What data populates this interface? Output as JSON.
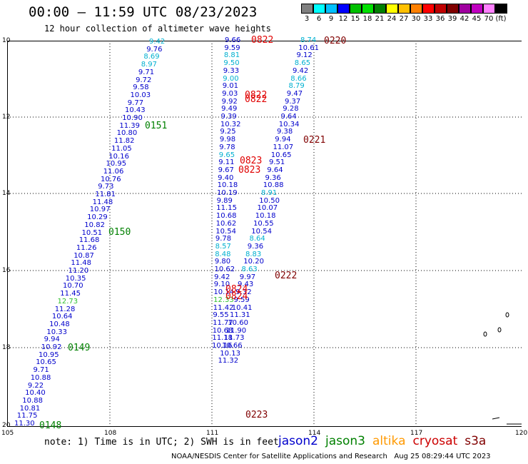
{
  "header": {
    "title": "00:00 – 11:59 UTC 08/23/2023",
    "subtitle": "12 hour collection of altimeter wave heights"
  },
  "colorbar": {
    "colors": [
      "#808080",
      "#00ffff",
      "#00c0ff",
      "#0000ff",
      "#00c000",
      "#00e000",
      "#008000",
      "#ffff00",
      "#ffc000",
      "#ff8000",
      "#ff0000",
      "#c00000",
      "#800000",
      "#a000a0",
      "#c000c0",
      "#ff80ff",
      "#000000"
    ],
    "labels": [
      "3",
      "6",
      "9",
      "12",
      "15",
      "18",
      "21",
      "24",
      "27",
      "30",
      "33",
      "36",
      "39",
      "42",
      "45",
      "70",
      "(ft)"
    ]
  },
  "axes": {
    "lon_labels": [
      "105",
      "108",
      "111",
      "114",
      "117",
      "120"
    ],
    "lat_labels": [
      "10",
      "12",
      "14",
      "16",
      "18",
      "20"
    ]
  },
  "colors": {
    "jason2": "#0000cc",
    "cyan": "#00b0d0",
    "lgreen": "#30c030",
    "dgreen": "#008000",
    "red": "#e00000",
    "dred": "#800000"
  },
  "tracks": {
    "track1": {
      "items": [
        [
          "9.42",
          "cyan"
        ],
        [
          "9.76",
          "jason2"
        ],
        [
          "8.69",
          "cyan"
        ],
        [
          "8.97",
          "cyan"
        ],
        [
          "9.71",
          "jason2"
        ],
        [
          "9.72",
          "jason2"
        ],
        [
          "9.58",
          "jason2"
        ],
        [
          "10.03",
          "jason2"
        ],
        [
          "9.77",
          "jason2"
        ],
        [
          "10.43",
          "jason2"
        ],
        [
          "10.90",
          "jason2"
        ],
        [
          "11.39",
          "jason2"
        ],
        [
          "10.80",
          "jason2"
        ],
        [
          "11.82",
          "jason2"
        ],
        [
          "11.05",
          "jason2"
        ],
        [
          "10.16",
          "jason2"
        ],
        [
          "10.95",
          "jason2"
        ],
        [
          "11.06",
          "jason2"
        ],
        [
          "10.76",
          "jason2"
        ],
        [
          "9.73",
          "jason2"
        ],
        [
          "11.81",
          "jason2"
        ],
        [
          "11.48",
          "jason2"
        ],
        [
          "10.97",
          "jason2"
        ],
        [
          "10.29",
          "jason2"
        ],
        [
          "10.82",
          "jason2"
        ],
        [
          "10.51",
          "jason2"
        ],
        [
          "11.68",
          "jason2"
        ],
        [
          "11.26",
          "jason2"
        ],
        [
          "10.87",
          "jason2"
        ],
        [
          "11.48",
          "jason2"
        ],
        [
          "11.20",
          "jason2"
        ],
        [
          "10.35",
          "jason2"
        ],
        [
          "10.70",
          "jason2"
        ],
        [
          "11.45",
          "jason2"
        ],
        [
          "12.73",
          "lgreen"
        ],
        [
          "11.28",
          "jason2"
        ],
        [
          "10.64",
          "jason2"
        ],
        [
          "10.48",
          "jason2"
        ],
        [
          "10.33",
          "jason2"
        ],
        [
          "9.94",
          "jason2"
        ],
        [
          "10.92",
          "jason2"
        ],
        [
          "10.95",
          "jason2"
        ],
        [
          "10.65",
          "jason2"
        ],
        [
          "9.71",
          "jason2"
        ],
        [
          "10.88",
          "jason2"
        ],
        [
          "9.22",
          "jason2"
        ],
        [
          "10.40",
          "jason2"
        ],
        [
          "10.88",
          "jason2"
        ],
        [
          "10.81",
          "jason2"
        ],
        [
          "11.75",
          "jason2"
        ],
        [
          "11.30",
          "jason2"
        ]
      ]
    },
    "track2": {
      "items": [
        [
          "9.66",
          "jason2"
        ],
        [
          "9.59",
          "jason2"
        ],
        [
          "8.81",
          "cyan"
        ],
        [
          "9.50",
          "cyan"
        ],
        [
          "9.33",
          "jason2"
        ],
        [
          "9.00",
          "cyan"
        ],
        [
          "9.01",
          "jason2"
        ],
        [
          "9.03",
          "jason2"
        ],
        [
          "9.92",
          "jason2"
        ],
        [
          "9.49",
          "jason2"
        ],
        [
          "9.39",
          "jason2"
        ],
        [
          "10.32",
          "jason2"
        ],
        [
          "9.25",
          "jason2"
        ],
        [
          "9.98",
          "jason2"
        ],
        [
          "9.78",
          "jason2"
        ],
        [
          "9.65",
          "cyan"
        ],
        [
          "9.11",
          "jason2"
        ],
        [
          "9.67",
          "jason2"
        ],
        [
          "9.40",
          "jason2"
        ],
        [
          "10.18",
          "jason2"
        ],
        [
          "10.19",
          "jason2"
        ],
        [
          "9.89",
          "jason2"
        ],
        [
          "11.15",
          "jason2"
        ],
        [
          "10.68",
          "jason2"
        ],
        [
          "10.62",
          "jason2"
        ],
        [
          "10.54",
          "jason2"
        ],
        [
          "9.78",
          "jason2"
        ],
        [
          "8.57",
          "cyan"
        ],
        [
          "8.48",
          "cyan"
        ],
        [
          "9.80",
          "jason2"
        ],
        [
          "10.62",
          "jason2"
        ],
        [
          "9.42",
          "jason2"
        ],
        [
          "9.10",
          "jason2"
        ],
        [
          "10.14",
          "jason2"
        ],
        [
          "12.33",
          "lgreen"
        ],
        [
          "11.42",
          "jason2"
        ],
        [
          "9.55",
          "jason2"
        ],
        [
          "11.77",
          "jason2"
        ],
        [
          "10.68",
          "jason2"
        ],
        [
          "11.18",
          "jason2"
        ],
        [
          "10.16",
          "jason2"
        ]
      ]
    },
    "track3": {
      "items": [
        [
          "8.74",
          "cyan"
        ],
        [
          "10.61",
          "jason2"
        ],
        [
          "9.12",
          "jason2"
        ],
        [
          "8.65",
          "cyan"
        ],
        [
          "9.42",
          "jason2"
        ],
        [
          "8.66",
          "cyan"
        ],
        [
          "8.79",
          "cyan"
        ],
        [
          "9.47",
          "jason2"
        ],
        [
          "9.37",
          "jason2"
        ],
        [
          "9.28",
          "jason2"
        ],
        [
          "9.64",
          "jason2"
        ],
        [
          "10.34",
          "jason2"
        ],
        [
          "9.38",
          "jason2"
        ],
        [
          "9.94",
          "jason2"
        ],
        [
          "11.07",
          "jason2"
        ],
        [
          "10.65",
          "jason2"
        ],
        [
          "9.51",
          "jason2"
        ],
        [
          "9.64",
          "jason2"
        ],
        [
          "9.36",
          "jason2"
        ],
        [
          "10.88",
          "jason2"
        ],
        [
          "8.91",
          "cyan"
        ],
        [
          "10.50",
          "jason2"
        ],
        [
          "10.07",
          "jason2"
        ],
        [
          "10.18",
          "jason2"
        ],
        [
          "10.55",
          "jason2"
        ],
        [
          "10.54",
          "jason2"
        ],
        [
          "8.64",
          "cyan"
        ],
        [
          "9.36",
          "jason2"
        ],
        [
          "8.83",
          "cyan"
        ],
        [
          "10.20",
          "jason2"
        ],
        [
          "8.63",
          "cyan"
        ],
        [
          "9.97",
          "jason2"
        ],
        [
          "9.43",
          "jason2"
        ],
        [
          "9.32",
          "jason2"
        ],
        [
          "9.59",
          "jason2"
        ],
        [
          "10.41",
          "jason2"
        ],
        [
          "11.31",
          "jason2"
        ],
        [
          "10.60",
          "jason2"
        ],
        [
          "11.90",
          "jason2"
        ],
        [
          "11.73",
          "jason2"
        ],
        [
          "10.66",
          "jason2"
        ],
        [
          "10.13",
          "jason2"
        ],
        [
          "11.32",
          "jason2"
        ]
      ]
    }
  },
  "time_labels": [
    [
      "0151",
      "dgreen"
    ],
    [
      "0150",
      "dgreen"
    ],
    [
      "0149",
      "dgreen"
    ],
    [
      "0148",
      "dgreen"
    ],
    [
      "0822",
      "red"
    ],
    [
      "0822",
      "red"
    ],
    [
      "0822",
      "red"
    ],
    [
      "0823",
      "red"
    ],
    [
      "0823",
      "red"
    ],
    [
      "0824",
      "red"
    ],
    [
      "0824",
      "red"
    ],
    [
      "0220",
      "dred"
    ],
    [
      "0221",
      "dred"
    ],
    [
      "0222",
      "dred"
    ],
    [
      "0223",
      "dred"
    ]
  ],
  "footer": {
    "note": "note: 1) Time is in UTC; 2) SWH is in feet",
    "legend": [
      {
        "name": "jason2",
        "color": "#0000cc"
      },
      {
        "name": "jason3",
        "color": "#008000"
      },
      {
        "name": "altika",
        "color": "#ff9900"
      },
      {
        "name": "cryosat",
        "color": "#cc0000"
      },
      {
        "name": "s3a",
        "color": "#800000"
      }
    ],
    "credit": "NOAA/NESDIS Center for Satellite Applications and Research   Aug 25 08:29:44 UTC 2023"
  }
}
